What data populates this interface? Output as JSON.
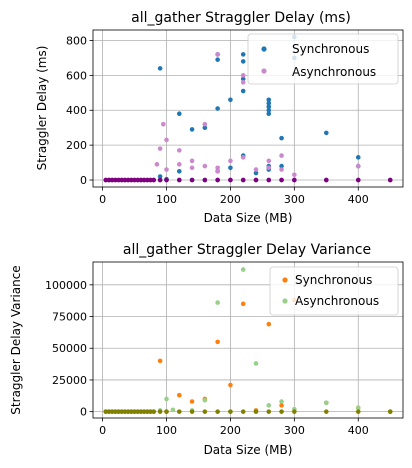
{
  "chart_data": [
    {
      "type": "scatter",
      "title": "all_gather Straggler Delay (ms)",
      "xlabel": "Data Size (MB)",
      "ylabel": "Straggler Delay (ms)",
      "xlim": [
        -15,
        470
      ],
      "ylim": [
        -40,
        860
      ],
      "xticks": [
        0,
        100,
        200,
        300,
        400
      ],
      "yticks": [
        0,
        200,
        400,
        600,
        800
      ],
      "grid": true,
      "legend_position": "top-right",
      "series": [
        {
          "name": "Synchronous",
          "color": "#1f77b4",
          "points": [
            [
              5,
              0
            ],
            [
              10,
              0
            ],
            [
              15,
              0
            ],
            [
              20,
              0
            ],
            [
              25,
              0
            ],
            [
              30,
              0
            ],
            [
              35,
              0
            ],
            [
              40,
              0
            ],
            [
              45,
              0
            ],
            [
              50,
              0
            ],
            [
              55,
              0
            ],
            [
              60,
              0
            ],
            [
              65,
              0
            ],
            [
              70,
              0
            ],
            [
              75,
              0
            ],
            [
              80,
              0
            ],
            [
              90,
              0
            ],
            [
              90,
              640
            ],
            [
              90,
              20
            ],
            [
              100,
              0
            ],
            [
              100,
              5
            ],
            [
              120,
              0
            ],
            [
              120,
              380
            ],
            [
              120,
              50
            ],
            [
              140,
              0
            ],
            [
              140,
              290
            ],
            [
              160,
              0
            ],
            [
              160,
              300
            ],
            [
              180,
              0
            ],
            [
              180,
              410
            ],
            [
              180,
              690
            ],
            [
              180,
              720
            ],
            [
              180,
              50
            ],
            [
              200,
              0
            ],
            [
              200,
              460
            ],
            [
              200,
              70
            ],
            [
              220,
              0
            ],
            [
              220,
              510
            ],
            [
              220,
              580
            ],
            [
              220,
              680
            ],
            [
              220,
              720
            ],
            [
              220,
              140
            ],
            [
              240,
              0
            ],
            [
              240,
              40
            ],
            [
              260,
              0
            ],
            [
              260,
              380
            ],
            [
              260,
              400
            ],
            [
              260,
              420
            ],
            [
              260,
              440
            ],
            [
              260,
              460
            ],
            [
              260,
              80
            ],
            [
              260,
              60
            ],
            [
              280,
              0
            ],
            [
              280,
              240
            ],
            [
              280,
              80
            ],
            [
              300,
              0
            ],
            [
              300,
              820
            ],
            [
              300,
              700
            ],
            [
              350,
              0
            ],
            [
              350,
              270
            ],
            [
              400,
              0
            ],
            [
              400,
              130
            ],
            [
              400,
              80
            ],
            [
              450,
              0
            ]
          ]
        },
        {
          "name": "Asynchronous",
          "color": "#cc88cc",
          "points": [
            [
              5,
              0
            ],
            [
              10,
              0
            ],
            [
              15,
              0
            ],
            [
              20,
              0
            ],
            [
              25,
              0
            ],
            [
              30,
              0
            ],
            [
              35,
              0
            ],
            [
              40,
              0
            ],
            [
              45,
              0
            ],
            [
              50,
              0
            ],
            [
              55,
              0
            ],
            [
              60,
              0
            ],
            [
              65,
              0
            ],
            [
              70,
              0
            ],
            [
              75,
              0
            ],
            [
              80,
              0
            ],
            [
              85,
              90
            ],
            [
              90,
              180
            ],
            [
              95,
              320
            ],
            [
              100,
              230
            ],
            [
              100,
              60
            ],
            [
              120,
              170
            ],
            [
              120,
              90
            ],
            [
              140,
              110
            ],
            [
              140,
              70
            ],
            [
              160,
              320
            ],
            [
              160,
              80
            ],
            [
              180,
              720
            ],
            [
              180,
              70
            ],
            [
              180,
              50
            ],
            [
              200,
              0
            ],
            [
              200,
              110
            ],
            [
              220,
              560
            ],
            [
              220,
              600
            ],
            [
              220,
              130
            ],
            [
              240,
              0
            ],
            [
              240,
              60
            ],
            [
              260,
              110
            ],
            [
              260,
              70
            ],
            [
              280,
              140
            ],
            [
              280,
              60
            ],
            [
              300,
              0
            ],
            [
              300,
              30
            ],
            [
              350,
              0
            ],
            [
              400,
              0
            ],
            [
              400,
              80
            ],
            [
              450,
              0
            ]
          ]
        },
        {
          "name": "",
          "color": "#800080",
          "points": [
            [
              5,
              0
            ],
            [
              10,
              0
            ],
            [
              15,
              0
            ],
            [
              20,
              0
            ],
            [
              25,
              0
            ],
            [
              30,
              0
            ],
            [
              35,
              0
            ],
            [
              40,
              0
            ],
            [
              45,
              0
            ],
            [
              50,
              0
            ],
            [
              55,
              0
            ],
            [
              60,
              0
            ],
            [
              65,
              0
            ],
            [
              70,
              0
            ],
            [
              75,
              0
            ],
            [
              80,
              0
            ],
            [
              90,
              0
            ],
            [
              100,
              0
            ],
            [
              120,
              0
            ],
            [
              140,
              0
            ],
            [
              160,
              0
            ],
            [
              180,
              0
            ],
            [
              200,
              0
            ],
            [
              220,
              0
            ],
            [
              240,
              0
            ],
            [
              260,
              0
            ],
            [
              280,
              0
            ],
            [
              300,
              0
            ],
            [
              350,
              0
            ],
            [
              400,
              0
            ],
            [
              450,
              0
            ]
          ]
        }
      ]
    },
    {
      "type": "scatter",
      "title": "all_gather Straggler Delay Variance",
      "xlabel": "Data Size (MB)",
      "ylabel": "Straggler Delay Variance",
      "xlim": [
        -15,
        470
      ],
      "ylim": [
        -5000,
        118000
      ],
      "xticks": [
        0,
        100,
        200,
        300,
        400
      ],
      "yticks": [
        0,
        25000,
        50000,
        75000,
        100000
      ],
      "ytick_labels": [
        "0",
        "25000",
        "50000",
        "75000",
        "100000"
      ],
      "grid": true,
      "legend_position": "top-right",
      "series": [
        {
          "name": "Synchronous",
          "color": "#ff7f0e",
          "points": [
            [
              5,
              0
            ],
            [
              10,
              0
            ],
            [
              15,
              0
            ],
            [
              20,
              0
            ],
            [
              25,
              0
            ],
            [
              30,
              0
            ],
            [
              35,
              0
            ],
            [
              40,
              0
            ],
            [
              45,
              0
            ],
            [
              50,
              0
            ],
            [
              55,
              0
            ],
            [
              60,
              0
            ],
            [
              65,
              0
            ],
            [
              70,
              0
            ],
            [
              75,
              0
            ],
            [
              80,
              0
            ],
            [
              90,
              40000
            ],
            [
              100,
              0
            ],
            [
              120,
              13000
            ],
            [
              140,
              8000
            ],
            [
              160,
              10000
            ],
            [
              180,
              55000
            ],
            [
              200,
              21000
            ],
            [
              220,
              85000
            ],
            [
              240,
              1000
            ],
            [
              260,
              69000
            ],
            [
              280,
              5000
            ],
            [
              300,
              88000
            ],
            [
              350,
              7000
            ],
            [
              400,
              3000
            ],
            [
              450,
              0
            ]
          ]
        },
        {
          "name": "Asynchronous",
          "color": "#98d08a",
          "points": [
            [
              5,
              0
            ],
            [
              10,
              0
            ],
            [
              15,
              0
            ],
            [
              20,
              0
            ],
            [
              25,
              0
            ],
            [
              30,
              0
            ],
            [
              35,
              0
            ],
            [
              40,
              0
            ],
            [
              45,
              0
            ],
            [
              50,
              0
            ],
            [
              55,
              0
            ],
            [
              60,
              0
            ],
            [
              65,
              0
            ],
            [
              70,
              0
            ],
            [
              75,
              0
            ],
            [
              80,
              0
            ],
            [
              90,
              1000
            ],
            [
              100,
              10000
            ],
            [
              110,
              1500
            ],
            [
              140,
              1000
            ],
            [
              160,
              9000
            ],
            [
              180,
              86000
            ],
            [
              200,
              0
            ],
            [
              220,
              112000
            ],
            [
              240,
              38000
            ],
            [
              260,
              5000
            ],
            [
              280,
              8000
            ],
            [
              300,
              2000
            ],
            [
              350,
              7000
            ],
            [
              400,
              3000
            ],
            [
              450,
              0
            ]
          ]
        },
        {
          "name": "",
          "color": "#808000",
          "points": [
            [
              5,
              0
            ],
            [
              10,
              0
            ],
            [
              15,
              0
            ],
            [
              20,
              0
            ],
            [
              25,
              0
            ],
            [
              30,
              0
            ],
            [
              35,
              0
            ],
            [
              40,
              0
            ],
            [
              45,
              0
            ],
            [
              50,
              0
            ],
            [
              55,
              0
            ],
            [
              60,
              0
            ],
            [
              65,
              0
            ],
            [
              70,
              0
            ],
            [
              75,
              0
            ],
            [
              80,
              0
            ],
            [
              90,
              0
            ],
            [
              100,
              0
            ],
            [
              120,
              0
            ],
            [
              140,
              0
            ],
            [
              160,
              0
            ],
            [
              180,
              0
            ],
            [
              200,
              0
            ],
            [
              220,
              0
            ],
            [
              240,
              0
            ],
            [
              260,
              0
            ],
            [
              280,
              0
            ],
            [
              300,
              0
            ],
            [
              350,
              0
            ],
            [
              400,
              0
            ],
            [
              450,
              0
            ]
          ]
        }
      ]
    }
  ]
}
